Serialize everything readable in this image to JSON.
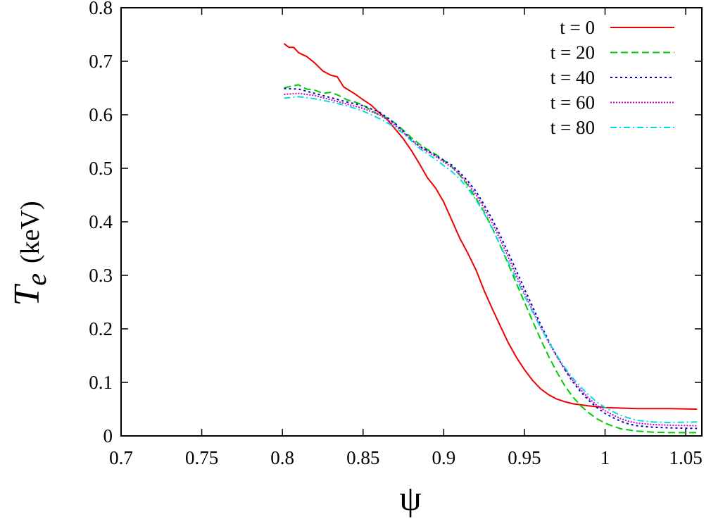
{
  "chart_data": {
    "type": "line",
    "xlabel": "ψ",
    "ylabel_main": "T",
    "ylabel_sub": "e",
    "ylabel_unit": "(keV)",
    "xlim": [
      0.7,
      1.06
    ],
    "ylim": [
      0,
      0.8
    ],
    "xticks": [
      0.7,
      0.75,
      0.8,
      0.85,
      0.9,
      0.95,
      1.0,
      1.05
    ],
    "xtick_labels": [
      "0.7",
      "0.75",
      "0.8",
      "0.85",
      "0.9",
      "0.95",
      "1",
      "1.05"
    ],
    "yticks": [
      0,
      0.1,
      0.2,
      0.3,
      0.4,
      0.5,
      0.6,
      0.7,
      0.8
    ],
    "ytick_labels": [
      "0",
      "0.1",
      "0.2",
      "0.3",
      "0.4",
      "0.5",
      "0.6",
      "0.7",
      "0.8"
    ],
    "grid": false,
    "legend_position": "top-right",
    "series": [
      {
        "name": "t = 0",
        "color": "#ee0000",
        "dash": "solid",
        "points": [
          [
            0.801,
            0.733
          ],
          [
            0.804,
            0.726
          ],
          [
            0.807,
            0.726
          ],
          [
            0.81,
            0.716
          ],
          [
            0.815,
            0.709
          ],
          [
            0.82,
            0.697
          ],
          [
            0.825,
            0.682
          ],
          [
            0.83,
            0.674
          ],
          [
            0.834,
            0.671
          ],
          [
            0.838,
            0.652
          ],
          [
            0.845,
            0.639
          ],
          [
            0.85,
            0.628
          ],
          [
            0.855,
            0.618
          ],
          [
            0.86,
            0.604
          ],
          [
            0.865,
            0.591
          ],
          [
            0.87,
            0.573
          ],
          [
            0.875,
            0.555
          ],
          [
            0.88,
            0.533
          ],
          [
            0.885,
            0.508
          ],
          [
            0.89,
            0.482
          ],
          [
            0.895,
            0.463
          ],
          [
            0.9,
            0.437
          ],
          [
            0.905,
            0.403
          ],
          [
            0.91,
            0.369
          ],
          [
            0.915,
            0.341
          ],
          [
            0.92,
            0.31
          ],
          [
            0.925,
            0.272
          ],
          [
            0.93,
            0.238
          ],
          [
            0.935,
            0.206
          ],
          [
            0.94,
            0.174
          ],
          [
            0.945,
            0.147
          ],
          [
            0.95,
            0.124
          ],
          [
            0.955,
            0.104
          ],
          [
            0.96,
            0.088
          ],
          [
            0.965,
            0.077
          ],
          [
            0.97,
            0.069
          ],
          [
            0.975,
            0.064
          ],
          [
            0.98,
            0.06
          ],
          [
            0.99,
            0.056
          ],
          [
            1.0,
            0.053
          ],
          [
            1.01,
            0.052
          ],
          [
            1.02,
            0.051
          ],
          [
            1.04,
            0.051
          ],
          [
            1.057,
            0.05
          ]
        ]
      },
      {
        "name": "t = 20",
        "color": "#00cc00",
        "dash": "10,5",
        "points": [
          [
            0.801,
            0.65
          ],
          [
            0.805,
            0.653
          ],
          [
            0.81,
            0.656
          ],
          [
            0.815,
            0.648
          ],
          [
            0.82,
            0.646
          ],
          [
            0.825,
            0.64
          ],
          [
            0.83,
            0.642
          ],
          [
            0.835,
            0.636
          ],
          [
            0.84,
            0.628
          ],
          [
            0.845,
            0.624
          ],
          [
            0.85,
            0.618
          ],
          [
            0.855,
            0.608
          ],
          [
            0.86,
            0.6
          ],
          [
            0.865,
            0.594
          ],
          [
            0.87,
            0.584
          ],
          [
            0.875,
            0.571
          ],
          [
            0.88,
            0.557
          ],
          [
            0.885,
            0.545
          ],
          [
            0.89,
            0.535
          ],
          [
            0.895,
            0.526
          ],
          [
            0.9,
            0.515
          ],
          [
            0.905,
            0.503
          ],
          [
            0.91,
            0.487
          ],
          [
            0.915,
            0.468
          ],
          [
            0.92,
            0.444
          ],
          [
            0.925,
            0.419
          ],
          [
            0.93,
            0.389
          ],
          [
            0.935,
            0.356
          ],
          [
            0.94,
            0.321
          ],
          [
            0.945,
            0.285
          ],
          [
            0.95,
            0.25
          ],
          [
            0.955,
            0.215
          ],
          [
            0.96,
            0.181
          ],
          [
            0.965,
            0.149
          ],
          [
            0.97,
            0.12
          ],
          [
            0.975,
            0.094
          ],
          [
            0.98,
            0.073
          ],
          [
            0.985,
            0.056
          ],
          [
            0.99,
            0.043
          ],
          [
            0.995,
            0.032
          ],
          [
            1.0,
            0.024
          ],
          [
            1.005,
            0.018
          ],
          [
            1.01,
            0.013
          ],
          [
            1.02,
            0.009
          ],
          [
            1.03,
            0.007
          ],
          [
            1.04,
            0.006
          ],
          [
            1.057,
            0.006
          ]
        ]
      },
      {
        "name": "t = 40",
        "color": "#0000cc",
        "dash": "3,4",
        "points": [
          [
            0.801,
            0.649
          ],
          [
            0.81,
            0.648
          ],
          [
            0.82,
            0.64
          ],
          [
            0.83,
            0.632
          ],
          [
            0.84,
            0.624
          ],
          [
            0.85,
            0.617
          ],
          [
            0.86,
            0.605
          ],
          [
            0.865,
            0.595
          ],
          [
            0.87,
            0.583
          ],
          [
            0.875,
            0.569
          ],
          [
            0.88,
            0.553
          ],
          [
            0.885,
            0.541
          ],
          [
            0.89,
            0.533
          ],
          [
            0.895,
            0.524
          ],
          [
            0.9,
            0.515
          ],
          [
            0.905,
            0.506
          ],
          [
            0.91,
            0.492
          ],
          [
            0.915,
            0.476
          ],
          [
            0.92,
            0.457
          ],
          [
            0.925,
            0.432
          ],
          [
            0.93,
            0.405
          ],
          [
            0.935,
            0.375
          ],
          [
            0.94,
            0.342
          ],
          [
            0.945,
            0.309
          ],
          [
            0.95,
            0.275
          ],
          [
            0.955,
            0.242
          ],
          [
            0.96,
            0.209
          ],
          [
            0.965,
            0.178
          ],
          [
            0.97,
            0.15
          ],
          [
            0.975,
            0.124
          ],
          [
            0.98,
            0.101
          ],
          [
            0.985,
            0.082
          ],
          [
            0.99,
            0.066
          ],
          [
            0.995,
            0.053
          ],
          [
            1.0,
            0.042
          ],
          [
            1.005,
            0.034
          ],
          [
            1.01,
            0.027
          ],
          [
            1.015,
            0.022
          ],
          [
            1.02,
            0.019
          ],
          [
            1.03,
            0.016
          ],
          [
            1.04,
            0.015
          ],
          [
            1.057,
            0.014
          ]
        ]
      },
      {
        "name": "t = 60",
        "color": "#cc00cc",
        "dash": "2,2",
        "points": [
          [
            0.801,
            0.638
          ],
          [
            0.81,
            0.64
          ],
          [
            0.82,
            0.636
          ],
          [
            0.83,
            0.628
          ],
          [
            0.84,
            0.62
          ],
          [
            0.85,
            0.612
          ],
          [
            0.86,
            0.6
          ],
          [
            0.865,
            0.591
          ],
          [
            0.87,
            0.58
          ],
          [
            0.875,
            0.567
          ],
          [
            0.88,
            0.553
          ],
          [
            0.885,
            0.54
          ],
          [
            0.89,
            0.531
          ],
          [
            0.895,
            0.522
          ],
          [
            0.9,
            0.512
          ],
          [
            0.905,
            0.502
          ],
          [
            0.91,
            0.488
          ],
          [
            0.915,
            0.471
          ],
          [
            0.92,
            0.451
          ],
          [
            0.925,
            0.426
          ],
          [
            0.93,
            0.398
          ],
          [
            0.935,
            0.367
          ],
          [
            0.94,
            0.334
          ],
          [
            0.945,
            0.3
          ],
          [
            0.95,
            0.267
          ],
          [
            0.955,
            0.235
          ],
          [
            0.96,
            0.204
          ],
          [
            0.965,
            0.175
          ],
          [
            0.97,
            0.149
          ],
          [
            0.975,
            0.125
          ],
          [
            0.98,
            0.104
          ],
          [
            0.985,
            0.086
          ],
          [
            0.99,
            0.07
          ],
          [
            0.995,
            0.057
          ],
          [
            1.0,
            0.047
          ],
          [
            1.005,
            0.039
          ],
          [
            1.01,
            0.032
          ],
          [
            1.015,
            0.027
          ],
          [
            1.02,
            0.024
          ],
          [
            1.03,
            0.021
          ],
          [
            1.04,
            0.02
          ],
          [
            1.057,
            0.019
          ]
        ]
      },
      {
        "name": "t = 80",
        "color": "#00dddd",
        "dash": "9,4,2,4",
        "points": [
          [
            0.801,
            0.631
          ],
          [
            0.81,
            0.634
          ],
          [
            0.82,
            0.63
          ],
          [
            0.83,
            0.624
          ],
          [
            0.84,
            0.617
          ],
          [
            0.85,
            0.607
          ],
          [
            0.86,
            0.593
          ],
          [
            0.865,
            0.585
          ],
          [
            0.87,
            0.576
          ],
          [
            0.875,
            0.565
          ],
          [
            0.88,
            0.551
          ],
          [
            0.885,
            0.537
          ],
          [
            0.89,
            0.527
          ],
          [
            0.895,
            0.517
          ],
          [
            0.9,
            0.505
          ],
          [
            0.905,
            0.494
          ],
          [
            0.91,
            0.48
          ],
          [
            0.915,
            0.462
          ],
          [
            0.92,
            0.441
          ],
          [
            0.925,
            0.416
          ],
          [
            0.93,
            0.388
          ],
          [
            0.935,
            0.357
          ],
          [
            0.94,
            0.325
          ],
          [
            0.945,
            0.293
          ],
          [
            0.95,
            0.262
          ],
          [
            0.955,
            0.232
          ],
          [
            0.96,
            0.203
          ],
          [
            0.965,
            0.176
          ],
          [
            0.97,
            0.151
          ],
          [
            0.975,
            0.128
          ],
          [
            0.98,
            0.108
          ],
          [
            0.985,
            0.091
          ],
          [
            0.99,
            0.076
          ],
          [
            0.995,
            0.063
          ],
          [
            1.0,
            0.053
          ],
          [
            1.005,
            0.045
          ],
          [
            1.01,
            0.038
          ],
          [
            1.015,
            0.033
          ],
          [
            1.02,
            0.029
          ],
          [
            1.03,
            0.026
          ],
          [
            1.04,
            0.025
          ],
          [
            1.057,
            0.026
          ]
        ]
      }
    ]
  }
}
